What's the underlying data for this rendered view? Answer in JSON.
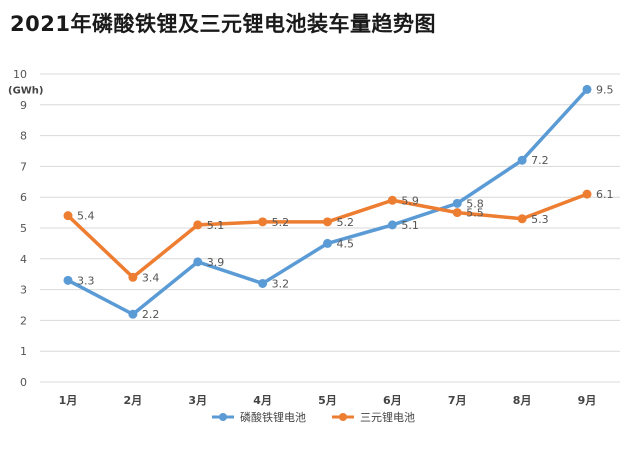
{
  "header": {
    "title": "2021年磷酸铁锂及三元锂电池装车量趋势图"
  },
  "chart_data": {
    "type": "line",
    "title": "2021年磷酸铁锂及三元锂电池装车量趋势图",
    "xlabel": "",
    "ylabel": "(GWh)",
    "ylim": [
      0,
      10
    ],
    "yticks": [
      0,
      1,
      2,
      3,
      4,
      5,
      6,
      7,
      8,
      9,
      10
    ],
    "grid": true,
    "legend": "bottom",
    "categories": [
      "1月",
      "2月",
      "3月",
      "4月",
      "5月",
      "6月",
      "7月",
      "8月",
      "9月"
    ],
    "series": [
      {
        "name": "磷酸铁锂电池",
        "color": "#5b9bd5",
        "values": [
          3.3,
          2.2,
          3.9,
          3.2,
          4.5,
          5.1,
          5.8,
          7.2,
          9.5
        ]
      },
      {
        "name": "三元锂电池",
        "color": "#ed7d31",
        "values": [
          5.4,
          3.4,
          5.1,
          5.2,
          5.2,
          5.9,
          5.5,
          5.3,
          6.1
        ]
      }
    ]
  }
}
